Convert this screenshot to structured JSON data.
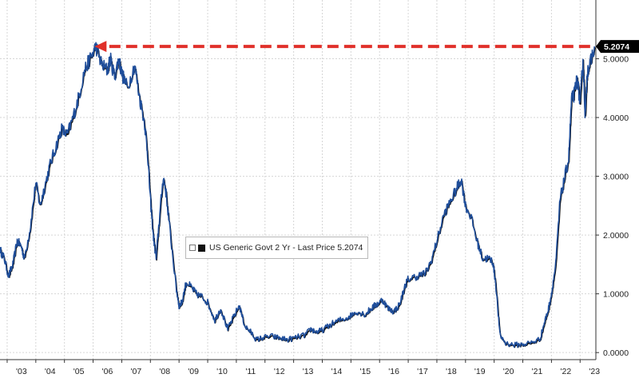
{
  "chart_data": {
    "type": "line",
    "title": "",
    "xlabel": "",
    "ylabel": "",
    "x_tick_labels": [
      "'03",
      "'04",
      "'05",
      "'06",
      "'07",
      "'08",
      "'09",
      "'10",
      "'11",
      "'12",
      "'13",
      "'14",
      "'15",
      "'16",
      "'17",
      "'18",
      "'19",
      "'20",
      "'21",
      "'22",
      "'23"
    ],
    "y_tick_labels": [
      "0.0000",
      "1.0000",
      "2.0000",
      "3.0000",
      "4.0000",
      "5.0000"
    ],
    "y_ticks": [
      0,
      1,
      2,
      3,
      4,
      5
    ],
    "xlim": [
      2002.75,
      2023.55
    ],
    "ylim": [
      -0.12,
      6.0
    ],
    "grid": true,
    "series": [
      {
        "name": "US Generic Govt 2 Yr",
        "color": "#1f4e9b",
        "x": [
          2002.75,
          2002.9,
          2003.05,
          2003.2,
          2003.35,
          2003.5,
          2003.6,
          2003.8,
          2004.0,
          2004.15,
          2004.3,
          2004.5,
          2004.7,
          2004.9,
          2005.1,
          2005.3,
          2005.5,
          2005.7,
          2005.9,
          2006.1,
          2006.3,
          2006.5,
          2006.6,
          2006.75,
          2006.9,
          2007.0,
          2007.2,
          2007.45,
          2007.6,
          2007.8,
          2007.9,
          2008.0,
          2008.1,
          2008.2,
          2008.3,
          2008.45,
          2008.55,
          2008.7,
          2008.9,
          2009.0,
          2009.1,
          2009.25,
          2009.45,
          2009.6,
          2009.8,
          2010.0,
          2010.25,
          2010.45,
          2010.7,
          2010.9,
          2011.1,
          2011.3,
          2011.5,
          2011.7,
          2011.9,
          2012.2,
          2012.5,
          2012.8,
          2013.1,
          2013.4,
          2013.6,
          2013.8,
          2014.0,
          2014.3,
          2014.6,
          2014.9,
          2015.2,
          2015.5,
          2015.7,
          2015.9,
          2016.1,
          2016.3,
          2016.5,
          2016.7,
          2016.9,
          2017.0,
          2017.3,
          2017.6,
          2017.8,
          2018.0,
          2018.25,
          2018.5,
          2018.7,
          2018.85,
          2019.0,
          2019.2,
          2019.4,
          2019.6,
          2019.8,
          2019.95,
          2020.05,
          2020.2,
          2020.4,
          2020.7,
          2021.0,
          2021.3,
          2021.6,
          2021.75,
          2021.9,
          2022.0,
          2022.15,
          2022.3,
          2022.45,
          2022.6,
          2022.7,
          2022.8,
          2022.9,
          2023.0,
          2023.1,
          2023.18,
          2023.25,
          2023.35,
          2023.5
        ],
        "values": [
          1.75,
          1.6,
          1.3,
          1.5,
          1.9,
          1.8,
          1.6,
          2.1,
          2.9,
          2.5,
          2.8,
          3.2,
          3.5,
          3.8,
          3.7,
          4.0,
          4.35,
          4.8,
          5.0,
          5.21,
          4.9,
          4.8,
          5.0,
          4.7,
          5.0,
          4.75,
          4.5,
          4.9,
          4.4,
          3.9,
          3.4,
          2.6,
          2.0,
          1.6,
          2.2,
          3.0,
          2.7,
          2.0,
          1.1,
          0.8,
          0.85,
          1.2,
          1.1,
          1.0,
          0.95,
          0.85,
          0.55,
          0.75,
          0.4,
          0.6,
          0.8,
          0.45,
          0.35,
          0.22,
          0.25,
          0.28,
          0.25,
          0.22,
          0.26,
          0.3,
          0.4,
          0.35,
          0.38,
          0.48,
          0.55,
          0.6,
          0.7,
          0.65,
          0.75,
          0.82,
          0.9,
          0.75,
          0.7,
          0.82,
          1.15,
          1.25,
          1.3,
          1.35,
          1.55,
          1.9,
          2.35,
          2.6,
          2.8,
          2.95,
          2.5,
          2.3,
          1.9,
          1.6,
          1.6,
          1.55,
          1.2,
          0.3,
          0.16,
          0.13,
          0.14,
          0.17,
          0.23,
          0.5,
          0.75,
          1.0,
          1.5,
          2.6,
          2.95,
          3.3,
          4.3,
          4.4,
          4.7,
          4.2,
          5.0,
          4.0,
          4.8,
          4.9,
          5.21
        ]
      }
    ],
    "legend": {
      "text": "US Generic Govt 2 Yr - Last Price 5.2074",
      "placement": "center"
    },
    "last_value_label": "5.2074",
    "annotations": [
      {
        "type": "dashed-arrow",
        "color": "#e0302a",
        "y": 5.21,
        "from_x": 2023.35,
        "to_x": 2006.05
      }
    ]
  }
}
